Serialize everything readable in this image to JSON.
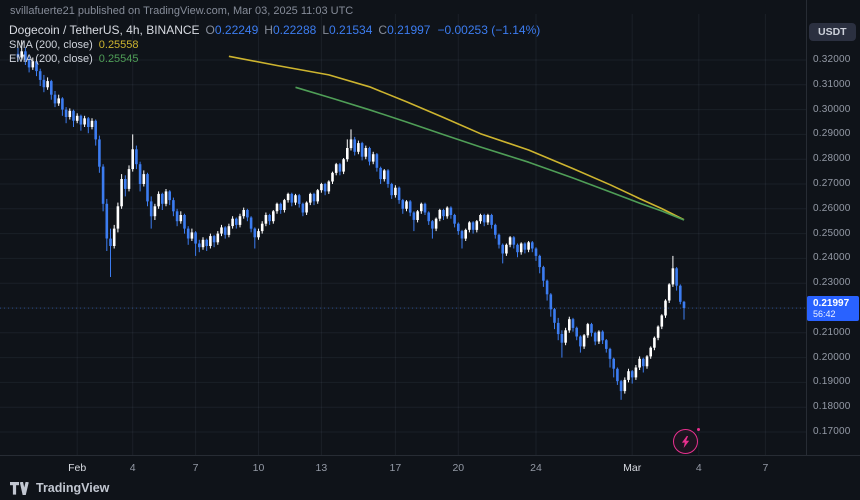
{
  "header": {
    "attribution": "svillafuerte21 published on TradingView.com, Mar 03, 2025 11:03 UTC"
  },
  "legend": {
    "symbol": "Dogecoin / TetherUS, 4h, BINANCE",
    "ohlc": {
      "o_label": "O",
      "o_value": "0.22249",
      "h_label": "H",
      "h_value": "0.22288",
      "l_label": "L",
      "l_value": "0.21534",
      "c_label": "C",
      "c_value": "0.21997",
      "change": "−0.00253 (−1.14%)"
    },
    "sma": {
      "label": "SMA (200, close)",
      "value": "0.25558"
    },
    "ema": {
      "label": "EMA (200, close)",
      "value": "0.25545"
    }
  },
  "axis": {
    "currency": "USDT"
  },
  "badge": {
    "price": "0.21997",
    "countdown": "56:42"
  },
  "footer": {
    "brand": "TradingView"
  },
  "chart_data": {
    "type": "candlestick",
    "symbol": "Dogecoin / TetherUS",
    "interval": "4h",
    "exchange": "BINANCE",
    "quote_currency": "USDT",
    "last_close": 0.21997,
    "current_bar": {
      "open": 0.22249,
      "high": 0.22288,
      "low": 0.21534,
      "close": 0.21997,
      "change": -0.00253,
      "change_pct": -1.14
    },
    "colors": {
      "up": "#ffffff",
      "down": "#3c7cf0",
      "sma": "#cdb42f",
      "ema": "#4f9e57",
      "badge": "#2962ff",
      "boost": "#e9308f"
    },
    "y_axis": {
      "labels": [
        "0.32000",
        "0.31000",
        "0.30000",
        "0.29000",
        "0.28000",
        "0.27000",
        "0.26000",
        "0.25000",
        "0.24000",
        "0.23000",
        "0.22000",
        "0.21000",
        "0.20000",
        "0.19000",
        "0.18000",
        "0.17000"
      ]
    },
    "x_axis": {
      "ticks": [
        {
          "label": "Feb",
          "i": 16,
          "major": true
        },
        {
          "label": "4",
          "i": 31
        },
        {
          "label": "7",
          "i": 48
        },
        {
          "label": "10",
          "i": 65
        },
        {
          "label": "13",
          "i": 82
        },
        {
          "label": "17",
          "i": 102
        },
        {
          "label": "20",
          "i": 119
        },
        {
          "label": "24",
          "i": 140
        },
        {
          "label": "Mar",
          "i": 166,
          "major": true
        },
        {
          "label": "4",
          "i": 184
        },
        {
          "label": "7",
          "i": 202
        }
      ]
    },
    "overlays": [
      {
        "name": "SMA (200, close)",
        "value": 0.25558,
        "color": "#cdb42f",
        "points": [
          [
            57,
            0.3215
          ],
          [
            70,
            0.3178
          ],
          [
            84,
            0.314
          ],
          [
            95,
            0.3092
          ],
          [
            105,
            0.3032
          ],
          [
            115,
            0.2968
          ],
          [
            125,
            0.2903
          ],
          [
            138,
            0.2837
          ],
          [
            150,
            0.2762
          ],
          [
            160,
            0.2697
          ],
          [
            168,
            0.2641
          ],
          [
            174,
            0.2601
          ],
          [
            180,
            0.2556
          ]
        ]
      },
      {
        "name": "EMA (200, close)",
        "value": 0.25545,
        "color": "#4f9e57",
        "points": [
          [
            75,
            0.309
          ],
          [
            85,
            0.3045
          ],
          [
            95,
            0.2999
          ],
          [
            105,
            0.295
          ],
          [
            115,
            0.2899
          ],
          [
            125,
            0.2849
          ],
          [
            138,
            0.2788
          ],
          [
            150,
            0.2724
          ],
          [
            160,
            0.2668
          ],
          [
            168,
            0.2623
          ],
          [
            174,
            0.2591
          ],
          [
            180,
            0.2555
          ]
        ]
      }
    ],
    "candles": [
      [
        0.3225,
        0.325,
        0.3195,
        0.321
      ],
      [
        0.321,
        0.328,
        0.32,
        0.3235
      ],
      [
        0.3235,
        0.325,
        0.318,
        0.32
      ],
      [
        0.32,
        0.3215,
        0.315,
        0.317
      ],
      [
        0.317,
        0.321,
        0.316,
        0.3195
      ],
      [
        0.3195,
        0.3205,
        0.3135,
        0.3155
      ],
      [
        0.3155,
        0.3165,
        0.3095,
        0.312
      ],
      [
        0.312,
        0.314,
        0.307,
        0.309
      ],
      [
        0.309,
        0.313,
        0.308,
        0.3115
      ],
      [
        0.3115,
        0.312,
        0.304,
        0.306
      ],
      [
        0.306,
        0.3075,
        0.301,
        0.3025
      ],
      [
        0.3025,
        0.306,
        0.3015,
        0.3045
      ],
      [
        0.3045,
        0.305,
        0.2975,
        0.3
      ],
      [
        0.3,
        0.301,
        0.2945,
        0.297
      ],
      [
        0.297,
        0.3005,
        0.296,
        0.2995
      ],
      [
        0.2995,
        0.3,
        0.293,
        0.2955
      ],
      [
        0.2955,
        0.2985,
        0.2945,
        0.2975
      ],
      [
        0.2975,
        0.298,
        0.2915,
        0.294
      ],
      [
        0.294,
        0.2975,
        0.293,
        0.2965
      ],
      [
        0.2965,
        0.297,
        0.2905,
        0.293
      ],
      [
        0.293,
        0.2965,
        0.292,
        0.2955
      ],
      [
        0.2955,
        0.296,
        0.2855,
        0.288
      ],
      [
        0.288,
        0.2895,
        0.2745,
        0.277
      ],
      [
        0.277,
        0.278,
        0.259,
        0.262
      ],
      [
        0.262,
        0.264,
        0.243,
        0.248
      ],
      [
        0.248,
        0.252,
        0.2325,
        0.245
      ],
      [
        0.245,
        0.2535,
        0.244,
        0.252
      ],
      [
        0.252,
        0.2625,
        0.2505,
        0.261
      ],
      [
        0.261,
        0.274,
        0.26,
        0.272
      ],
      [
        0.272,
        0.2735,
        0.265,
        0.268
      ],
      [
        0.268,
        0.2775,
        0.267,
        0.276
      ],
      [
        0.276,
        0.29,
        0.275,
        0.284
      ],
      [
        0.284,
        0.2855,
        0.276,
        0.278
      ],
      [
        0.278,
        0.279,
        0.267,
        0.27
      ],
      [
        0.27,
        0.2755,
        0.269,
        0.274
      ],
      [
        0.274,
        0.2745,
        0.261,
        0.263
      ],
      [
        0.263,
        0.265,
        0.252,
        0.257
      ],
      [
        0.257,
        0.262,
        0.2555,
        0.261
      ],
      [
        0.261,
        0.267,
        0.26,
        0.266
      ],
      [
        0.266,
        0.2665,
        0.2595,
        0.262
      ],
      [
        0.262,
        0.268,
        0.261,
        0.267
      ],
      [
        0.267,
        0.2675,
        0.2615,
        0.2635
      ],
      [
        0.2635,
        0.2645,
        0.257,
        0.259
      ],
      [
        0.259,
        0.26,
        0.253,
        0.255
      ],
      [
        0.255,
        0.259,
        0.254,
        0.2575
      ],
      [
        0.2575,
        0.258,
        0.25,
        0.252
      ],
      [
        0.252,
        0.253,
        0.2455,
        0.248
      ],
      [
        0.248,
        0.252,
        0.247,
        0.2505
      ],
      [
        0.2505,
        0.251,
        0.241,
        0.246
      ],
      [
        0.246,
        0.2475,
        0.2425,
        0.2445
      ],
      [
        0.2445,
        0.2485,
        0.2435,
        0.2475
      ],
      [
        0.2475,
        0.248,
        0.243,
        0.245
      ],
      [
        0.245,
        0.25,
        0.244,
        0.249
      ],
      [
        0.249,
        0.2495,
        0.2445,
        0.2465
      ],
      [
        0.2465,
        0.251,
        0.2455,
        0.25
      ],
      [
        0.25,
        0.2535,
        0.249,
        0.2525
      ],
      [
        0.2525,
        0.253,
        0.248,
        0.2495
      ],
      [
        0.2495,
        0.254,
        0.2485,
        0.253
      ],
      [
        0.253,
        0.257,
        0.252,
        0.256
      ],
      [
        0.256,
        0.2565,
        0.252,
        0.2535
      ],
      [
        0.2535,
        0.258,
        0.2525,
        0.257
      ],
      [
        0.257,
        0.2605,
        0.256,
        0.2595
      ],
      [
        0.2595,
        0.26,
        0.255,
        0.2565
      ],
      [
        0.2565,
        0.257,
        0.2505,
        0.252
      ],
      [
        0.252,
        0.2525,
        0.244,
        0.2485
      ],
      [
        0.2485,
        0.252,
        0.2475,
        0.251
      ],
      [
        0.251,
        0.255,
        0.25,
        0.254
      ],
      [
        0.254,
        0.2585,
        0.253,
        0.2575
      ],
      [
        0.2575,
        0.258,
        0.2535,
        0.255
      ],
      [
        0.255,
        0.2595,
        0.254,
        0.259
      ],
      [
        0.259,
        0.2625,
        0.258,
        0.262
      ],
      [
        0.262,
        0.2625,
        0.258,
        0.2595
      ],
      [
        0.2595,
        0.264,
        0.2585,
        0.2635
      ],
      [
        0.2635,
        0.2665,
        0.2625,
        0.266
      ],
      [
        0.266,
        0.2665,
        0.261,
        0.2625
      ],
      [
        0.2625,
        0.266,
        0.2615,
        0.2655
      ],
      [
        0.2655,
        0.266,
        0.2605,
        0.262
      ],
      [
        0.262,
        0.2625,
        0.257,
        0.2585
      ],
      [
        0.2585,
        0.263,
        0.2575,
        0.2625
      ],
      [
        0.2625,
        0.2665,
        0.2615,
        0.266
      ],
      [
        0.266,
        0.2665,
        0.2615,
        0.263
      ],
      [
        0.263,
        0.268,
        0.262,
        0.2675
      ],
      [
        0.2675,
        0.2705,
        0.2665,
        0.27
      ],
      [
        0.27,
        0.2705,
        0.2655,
        0.267
      ],
      [
        0.267,
        0.2715,
        0.266,
        0.271
      ],
      [
        0.271,
        0.275,
        0.27,
        0.2745
      ],
      [
        0.2745,
        0.2785,
        0.2735,
        0.278
      ],
      [
        0.278,
        0.2785,
        0.2735,
        0.275
      ],
      [
        0.275,
        0.2805,
        0.274,
        0.28
      ],
      [
        0.28,
        0.288,
        0.279,
        0.2845
      ],
      [
        0.2845,
        0.292,
        0.2835,
        0.288
      ],
      [
        0.288,
        0.289,
        0.2815,
        0.283
      ],
      [
        0.283,
        0.2875,
        0.282,
        0.2865
      ],
      [
        0.2865,
        0.287,
        0.2795,
        0.281
      ],
      [
        0.281,
        0.2855,
        0.28,
        0.2845
      ],
      [
        0.2845,
        0.285,
        0.2775,
        0.279
      ],
      [
        0.279,
        0.283,
        0.278,
        0.282
      ],
      [
        0.282,
        0.2825,
        0.275,
        0.2765
      ],
      [
        0.2765,
        0.277,
        0.27,
        0.272
      ],
      [
        0.272,
        0.276,
        0.271,
        0.2755
      ],
      [
        0.2755,
        0.276,
        0.2685,
        0.27
      ],
      [
        0.27,
        0.2705,
        0.264,
        0.2655
      ],
      [
        0.2655,
        0.2695,
        0.2645,
        0.2685
      ],
      [
        0.2685,
        0.269,
        0.262,
        0.2635
      ],
      [
        0.2635,
        0.264,
        0.258,
        0.26
      ],
      [
        0.26,
        0.2635,
        0.259,
        0.263
      ],
      [
        0.263,
        0.2635,
        0.257,
        0.2585
      ],
      [
        0.2585,
        0.259,
        0.251,
        0.2555
      ],
      [
        0.2555,
        0.2595,
        0.2545,
        0.259
      ],
      [
        0.259,
        0.2625,
        0.258,
        0.262
      ],
      [
        0.262,
        0.2625,
        0.2575,
        0.2585
      ],
      [
        0.2585,
        0.259,
        0.2535,
        0.255
      ],
      [
        0.255,
        0.2555,
        0.248,
        0.252
      ],
      [
        0.252,
        0.2565,
        0.251,
        0.256
      ],
      [
        0.256,
        0.26,
        0.255,
        0.2595
      ],
      [
        0.2595,
        0.26,
        0.2555,
        0.257
      ],
      [
        0.257,
        0.261,
        0.256,
        0.2605
      ],
      [
        0.2605,
        0.261,
        0.256,
        0.2575
      ],
      [
        0.2575,
        0.258,
        0.2525,
        0.254
      ],
      [
        0.254,
        0.2545,
        0.2495,
        0.251
      ],
      [
        0.251,
        0.2515,
        0.244,
        0.248
      ],
      [
        0.248,
        0.252,
        0.247,
        0.2515
      ],
      [
        0.2515,
        0.255,
        0.2505,
        0.2545
      ],
      [
        0.2545,
        0.255,
        0.25,
        0.2515
      ],
      [
        0.2515,
        0.2555,
        0.2505,
        0.255
      ],
      [
        0.255,
        0.258,
        0.254,
        0.2575
      ],
      [
        0.2575,
        0.258,
        0.253,
        0.2545
      ],
      [
        0.2545,
        0.258,
        0.2535,
        0.2575
      ],
      [
        0.2575,
        0.258,
        0.252,
        0.2535
      ],
      [
        0.2535,
        0.254,
        0.248,
        0.2495
      ],
      [
        0.2495,
        0.25,
        0.244,
        0.2455
      ],
      [
        0.2455,
        0.246,
        0.238,
        0.242
      ],
      [
        0.242,
        0.246,
        0.241,
        0.2455
      ],
      [
        0.2455,
        0.249,
        0.2445,
        0.2485
      ],
      [
        0.2485,
        0.249,
        0.244,
        0.2455
      ],
      [
        0.2455,
        0.246,
        0.2405,
        0.2425
      ],
      [
        0.2425,
        0.2465,
        0.2415,
        0.246
      ],
      [
        0.246,
        0.2465,
        0.242,
        0.2435
      ],
      [
        0.2435,
        0.247,
        0.2425,
        0.2465
      ],
      [
        0.2465,
        0.247,
        0.2425,
        0.244
      ],
      [
        0.244,
        0.2445,
        0.239,
        0.241
      ],
      [
        0.241,
        0.2415,
        0.234,
        0.2365
      ],
      [
        0.2365,
        0.237,
        0.2285,
        0.231
      ],
      [
        0.231,
        0.2315,
        0.223,
        0.2255
      ],
      [
        0.2255,
        0.226,
        0.2165,
        0.2195
      ],
      [
        0.2195,
        0.22,
        0.2115,
        0.214
      ],
      [
        0.214,
        0.216,
        0.207,
        0.2095
      ],
      [
        0.2095,
        0.211,
        0.2,
        0.206
      ],
      [
        0.206,
        0.212,
        0.205,
        0.211
      ],
      [
        0.211,
        0.2165,
        0.21,
        0.2155
      ],
      [
        0.2155,
        0.216,
        0.2105,
        0.212
      ],
      [
        0.212,
        0.2125,
        0.207,
        0.2085
      ],
      [
        0.2085,
        0.209,
        0.202,
        0.2045
      ],
      [
        0.2045,
        0.2095,
        0.2035,
        0.209
      ],
      [
        0.209,
        0.214,
        0.208,
        0.2135
      ],
      [
        0.2135,
        0.214,
        0.2085,
        0.21
      ],
      [
        0.21,
        0.2105,
        0.205,
        0.2065
      ],
      [
        0.2065,
        0.211,
        0.2055,
        0.2105
      ],
      [
        0.2105,
        0.211,
        0.2055,
        0.207
      ],
      [
        0.207,
        0.2075,
        0.202,
        0.2035
      ],
      [
        0.2035,
        0.204,
        0.196,
        0.1995
      ],
      [
        0.1995,
        0.2,
        0.192,
        0.1955
      ],
      [
        0.1955,
        0.196,
        0.189,
        0.1905
      ],
      [
        0.1905,
        0.191,
        0.183,
        0.1865
      ],
      [
        0.1865,
        0.192,
        0.1855,
        0.191
      ],
      [
        0.191,
        0.1955,
        0.19,
        0.1945
      ],
      [
        0.1945,
        0.195,
        0.1895,
        0.192
      ],
      [
        0.192,
        0.197,
        0.191,
        0.196
      ],
      [
        0.196,
        0.2005,
        0.195,
        0.1995
      ],
      [
        0.1995,
        0.2,
        0.194,
        0.1965
      ],
      [
        0.1965,
        0.201,
        0.1955,
        0.2005
      ],
      [
        0.2005,
        0.2045,
        0.1995,
        0.204
      ],
      [
        0.204,
        0.2085,
        0.203,
        0.208
      ],
      [
        0.208,
        0.213,
        0.207,
        0.2125
      ],
      [
        0.2125,
        0.2175,
        0.2115,
        0.217
      ],
      [
        0.217,
        0.2235,
        0.216,
        0.223
      ],
      [
        0.223,
        0.23,
        0.222,
        0.2295
      ],
      [
        0.2295,
        0.241,
        0.2285,
        0.236
      ],
      [
        0.236,
        0.2365,
        0.227,
        0.229
      ],
      [
        0.229,
        0.2295,
        0.2215,
        0.2225
      ],
      [
        0.22249,
        0.22288,
        0.21534,
        0.21997
      ]
    ]
  }
}
